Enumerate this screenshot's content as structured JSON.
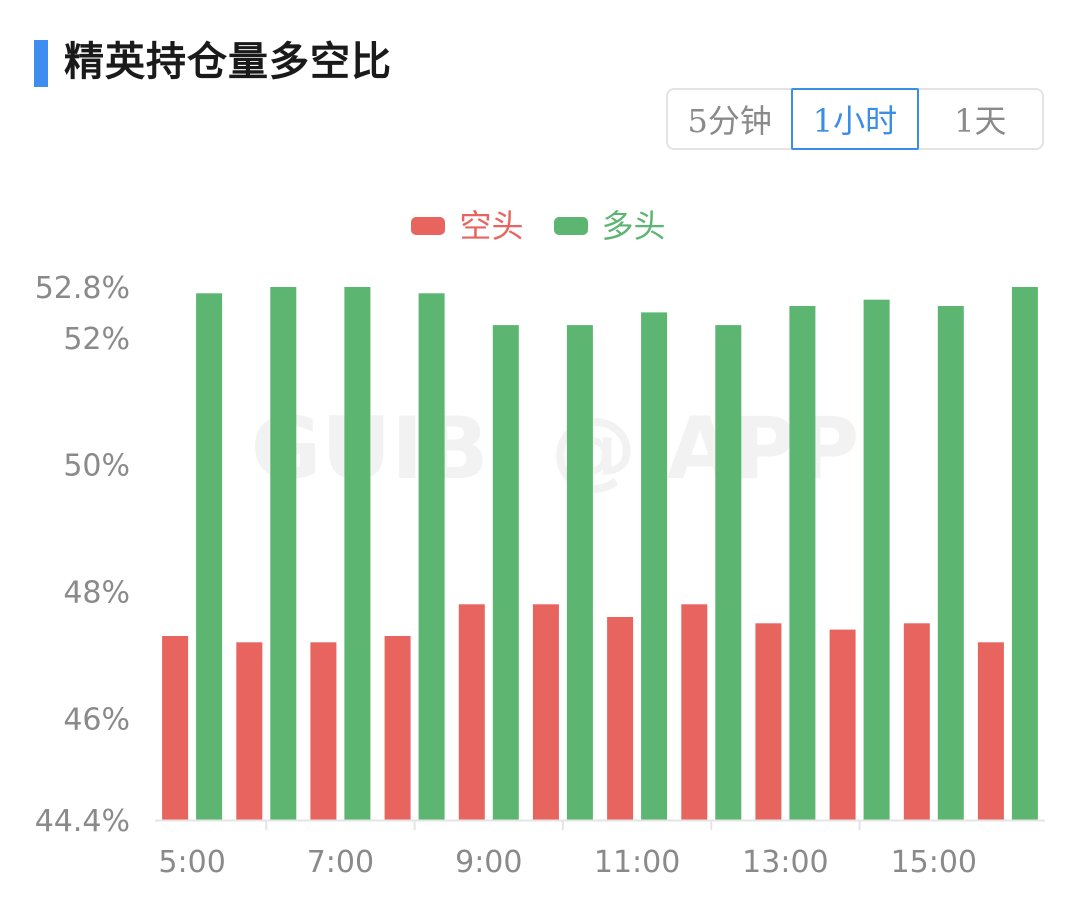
{
  "header": {
    "title": "精英持仓量多空比"
  },
  "periods": {
    "items": [
      "5分钟",
      "1小时",
      "1天"
    ],
    "active": "1小时"
  },
  "watermark": "GUIBI @ APP",
  "colors": {
    "accent": "#3d8ef0",
    "short": "#e8645f",
    "long": "#5cb570",
    "axis_text": "#8a8a8a"
  },
  "chart_data": {
    "type": "bar",
    "title": "精英持仓量多空比",
    "legend": [
      "空头",
      "多头"
    ],
    "legend_position": "top-center",
    "categories": [
      "5:00",
      "6:00",
      "7:00",
      "8:00",
      "9:00",
      "10:00",
      "11:00",
      "12:00",
      "13:00",
      "14:00",
      "15:00",
      "16:00"
    ],
    "x_tick_labels": [
      "5:00",
      "7:00",
      "9:00",
      "11:00",
      "13:00",
      "15:00"
    ],
    "y_tick_labels": [
      "44.4%",
      "46%",
      "48%",
      "50%",
      "52%",
      "52.8%"
    ],
    "y_ticks": [
      44.4,
      46,
      48,
      50,
      52,
      52.8
    ],
    "ylim": [
      44.4,
      52.8
    ],
    "grid": false,
    "series": [
      {
        "name": "空头",
        "color": "#e8645f",
        "values": [
          47.3,
          47.2,
          47.2,
          47.3,
          47.8,
          47.8,
          47.6,
          47.8,
          47.5,
          47.4,
          47.5,
          47.2
        ]
      },
      {
        "name": "多头",
        "color": "#5cb570",
        "values": [
          52.7,
          52.8,
          52.8,
          52.7,
          52.2,
          52.2,
          52.4,
          52.2,
          52.5,
          52.6,
          52.5,
          52.8
        ]
      }
    ]
  }
}
